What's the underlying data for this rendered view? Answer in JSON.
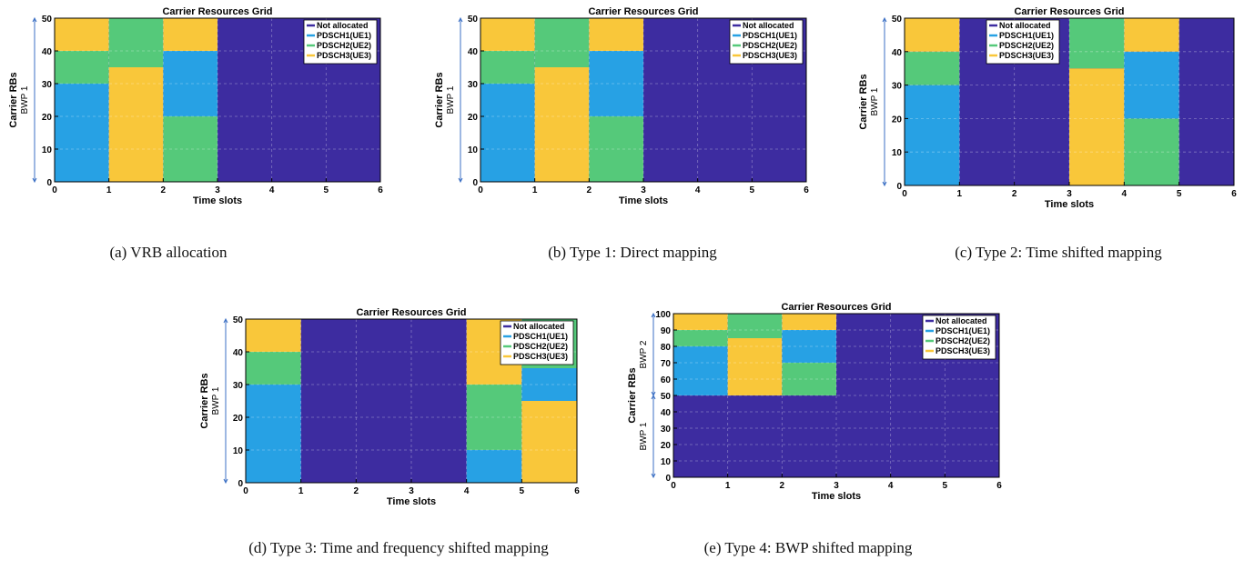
{
  "chart_data": [
    {
      "type": "heatmap",
      "title": "Carrier Resources Grid",
      "caption": "(a) VRB allocation",
      "xlabel": "Time slots",
      "ylabel": "Carrier RBs",
      "bwp_labels": [
        {
          "text": "BWP 1",
          "from": 0,
          "to": 50
        }
      ],
      "xlim": [
        0,
        6
      ],
      "ylim": [
        0,
        50
      ],
      "xticks": [
        0,
        1,
        2,
        3,
        4,
        5,
        6
      ],
      "yticks": [
        0,
        10,
        20,
        30,
        40,
        50
      ],
      "grid": true,
      "legend_position": "top-right",
      "legend": [
        "Not allocated",
        "PDSCH1(UE1)",
        "PDSCH2(UE2)",
        "PDSCH3(UE3)"
      ],
      "background": "Not allocated",
      "blocks": [
        {
          "series": "PDSCH1(UE1)",
          "x": [
            0,
            1
          ],
          "y": [
            0,
            30
          ]
        },
        {
          "series": "PDSCH2(UE2)",
          "x": [
            0,
            1
          ],
          "y": [
            30,
            40
          ]
        },
        {
          "series": "PDSCH3(UE3)",
          "x": [
            0,
            1
          ],
          "y": [
            40,
            50
          ]
        },
        {
          "series": "PDSCH3(UE3)",
          "x": [
            1,
            2
          ],
          "y": [
            0,
            35
          ]
        },
        {
          "series": "PDSCH2(UE2)",
          "x": [
            1,
            2
          ],
          "y": [
            35,
            50
          ]
        },
        {
          "series": "PDSCH2(UE2)",
          "x": [
            2,
            3
          ],
          "y": [
            0,
            20
          ]
        },
        {
          "series": "PDSCH1(UE1)",
          "x": [
            2,
            3
          ],
          "y": [
            20,
            40
          ]
        },
        {
          "series": "PDSCH3(UE3)",
          "x": [
            2,
            3
          ],
          "y": [
            40,
            50
          ]
        }
      ]
    },
    {
      "type": "heatmap",
      "title": "Carrier Resources Grid",
      "caption": "(b) Type 1: Direct mapping",
      "xlabel": "Time slots",
      "ylabel": "Carrier RBs",
      "bwp_labels": [
        {
          "text": "BWP 1",
          "from": 0,
          "to": 50
        }
      ],
      "xlim": [
        0,
        6
      ],
      "ylim": [
        0,
        50
      ],
      "xticks": [
        0,
        1,
        2,
        3,
        4,
        5,
        6
      ],
      "yticks": [
        0,
        10,
        20,
        30,
        40,
        50
      ],
      "grid": true,
      "legend_position": "top-right",
      "legend": [
        "Not allocated",
        "PDSCH1(UE1)",
        "PDSCH2(UE2)",
        "PDSCH3(UE3)"
      ],
      "background": "Not allocated",
      "blocks": [
        {
          "series": "PDSCH1(UE1)",
          "x": [
            0,
            1
          ],
          "y": [
            0,
            30
          ]
        },
        {
          "series": "PDSCH2(UE2)",
          "x": [
            0,
            1
          ],
          "y": [
            30,
            40
          ]
        },
        {
          "series": "PDSCH3(UE3)",
          "x": [
            0,
            1
          ],
          "y": [
            40,
            50
          ]
        },
        {
          "series": "PDSCH3(UE3)",
          "x": [
            1,
            2
          ],
          "y": [
            0,
            35
          ]
        },
        {
          "series": "PDSCH2(UE2)",
          "x": [
            1,
            2
          ],
          "y": [
            35,
            50
          ]
        },
        {
          "series": "PDSCH2(UE2)",
          "x": [
            2,
            3
          ],
          "y": [
            0,
            20
          ]
        },
        {
          "series": "PDSCH1(UE1)",
          "x": [
            2,
            3
          ],
          "y": [
            20,
            40
          ]
        },
        {
          "series": "PDSCH3(UE3)",
          "x": [
            2,
            3
          ],
          "y": [
            40,
            50
          ]
        }
      ]
    },
    {
      "type": "heatmap",
      "title": "Carrier Resources Grid",
      "caption": "(c) Type 2: Time shifted mapping",
      "xlabel": "Time slots",
      "ylabel": "Carrier RBs",
      "bwp_labels": [
        {
          "text": "BWP 1",
          "from": 0,
          "to": 50
        }
      ],
      "xlim": [
        0,
        6
      ],
      "ylim": [
        0,
        50
      ],
      "xticks": [
        0,
        1,
        2,
        3,
        4,
        5,
        6
      ],
      "yticks": [
        0,
        10,
        20,
        30,
        40,
        50
      ],
      "grid": true,
      "legend_position": "top-left",
      "legend": [
        "Not allocated",
        "PDSCH1(UE1)",
        "PDSCH2(UE2)",
        "PDSCH3(UE3)"
      ],
      "background": "Not allocated",
      "blocks": [
        {
          "series": "PDSCH1(UE1)",
          "x": [
            0,
            1
          ],
          "y": [
            0,
            30
          ]
        },
        {
          "series": "PDSCH2(UE2)",
          "x": [
            0,
            1
          ],
          "y": [
            30,
            40
          ]
        },
        {
          "series": "PDSCH3(UE3)",
          "x": [
            0,
            1
          ],
          "y": [
            40,
            50
          ]
        },
        {
          "series": "PDSCH3(UE3)",
          "x": [
            3,
            4
          ],
          "y": [
            0,
            35
          ]
        },
        {
          "series": "PDSCH2(UE2)",
          "x": [
            3,
            4
          ],
          "y": [
            35,
            50
          ]
        },
        {
          "series": "PDSCH2(UE2)",
          "x": [
            4,
            5
          ],
          "y": [
            0,
            20
          ]
        },
        {
          "series": "PDSCH1(UE1)",
          "x": [
            4,
            5
          ],
          "y": [
            20,
            40
          ]
        },
        {
          "series": "PDSCH3(UE3)",
          "x": [
            4,
            5
          ],
          "y": [
            40,
            50
          ]
        }
      ]
    },
    {
      "type": "heatmap",
      "title": "Carrier Resources Grid",
      "caption": "(d) Type 3: Time and frequency shifted mapping",
      "xlabel": "Time slots",
      "ylabel": "Carrier RBs",
      "bwp_labels": [
        {
          "text": "BWP 1",
          "from": 0,
          "to": 50
        }
      ],
      "xlim": [
        0,
        6
      ],
      "ylim": [
        0,
        50
      ],
      "xticks": [
        0,
        1,
        2,
        3,
        4,
        5,
        6
      ],
      "yticks": [
        0,
        10,
        20,
        30,
        40,
        50
      ],
      "grid": true,
      "legend_position": "top-right",
      "legend": [
        "Not allocated",
        "PDSCH1(UE1)",
        "PDSCH2(UE2)",
        "PDSCH3(UE3)"
      ],
      "background": "Not allocated",
      "blocks": [
        {
          "series": "PDSCH1(UE1)",
          "x": [
            0,
            1
          ],
          "y": [
            0,
            30
          ]
        },
        {
          "series": "PDSCH2(UE2)",
          "x": [
            0,
            1
          ],
          "y": [
            30,
            40
          ]
        },
        {
          "series": "PDSCH3(UE3)",
          "x": [
            0,
            1
          ],
          "y": [
            40,
            50
          ]
        },
        {
          "series": "PDSCH1(UE1)",
          "x": [
            4,
            5
          ],
          "y": [
            0,
            10
          ]
        },
        {
          "series": "PDSCH2(UE2)",
          "x": [
            4,
            5
          ],
          "y": [
            10,
            30
          ]
        },
        {
          "series": "PDSCH3(UE3)",
          "x": [
            4,
            5
          ],
          "y": [
            30,
            50
          ]
        },
        {
          "series": "PDSCH3(UE3)",
          "x": [
            5,
            6
          ],
          "y": [
            0,
            25
          ]
        },
        {
          "series": "PDSCH1(UE1)",
          "x": [
            5,
            6
          ],
          "y": [
            25,
            35
          ]
        },
        {
          "series": "PDSCH2(UE2)",
          "x": [
            5,
            6
          ],
          "y": [
            35,
            50
          ]
        }
      ]
    },
    {
      "type": "heatmap",
      "title": "Carrier Resources Grid",
      "caption": "(e) Type 4: BWP shifted mapping",
      "xlabel": "Time slots",
      "ylabel": "Carrier RBs",
      "bwp_labels": [
        {
          "text": "BWP 1",
          "from": 0,
          "to": 50
        },
        {
          "text": "BWP 2",
          "from": 50,
          "to": 100
        }
      ],
      "xlim": [
        0,
        6
      ],
      "ylim": [
        0,
        100
      ],
      "xticks": [
        0,
        1,
        2,
        3,
        4,
        5,
        6
      ],
      "yticks": [
        0,
        10,
        20,
        30,
        40,
        50,
        60,
        70,
        80,
        90,
        100
      ],
      "grid": true,
      "legend_position": "top-right",
      "legend": [
        "Not allocated",
        "PDSCH1(UE1)",
        "PDSCH2(UE2)",
        "PDSCH3(UE3)"
      ],
      "background": "Not allocated",
      "blocks": [
        {
          "series": "PDSCH1(UE1)",
          "x": [
            0,
            1
          ],
          "y": [
            50,
            80
          ]
        },
        {
          "series": "PDSCH2(UE2)",
          "x": [
            0,
            1
          ],
          "y": [
            80,
            90
          ]
        },
        {
          "series": "PDSCH3(UE3)",
          "x": [
            0,
            1
          ],
          "y": [
            90,
            100
          ]
        },
        {
          "series": "PDSCH3(UE3)",
          "x": [
            1,
            2
          ],
          "y": [
            50,
            85
          ]
        },
        {
          "series": "PDSCH2(UE2)",
          "x": [
            1,
            2
          ],
          "y": [
            85,
            100
          ]
        },
        {
          "series": "PDSCH2(UE2)",
          "x": [
            2,
            3
          ],
          "y": [
            50,
            70
          ]
        },
        {
          "series": "PDSCH1(UE1)",
          "x": [
            2,
            3
          ],
          "y": [
            70,
            90
          ]
        },
        {
          "series": "PDSCH3(UE3)",
          "x": [
            2,
            3
          ],
          "y": [
            90,
            100
          ]
        }
      ]
    }
  ],
  "colors": {
    "Not allocated": "#3d2ca0",
    "PDSCH1(UE1)": "#27a1e4",
    "PDSCH2(UE2)": "#55c97a",
    "PDSCH3(UE3)": "#f9c73a",
    "bwp_marker": "#3b6fc4"
  }
}
